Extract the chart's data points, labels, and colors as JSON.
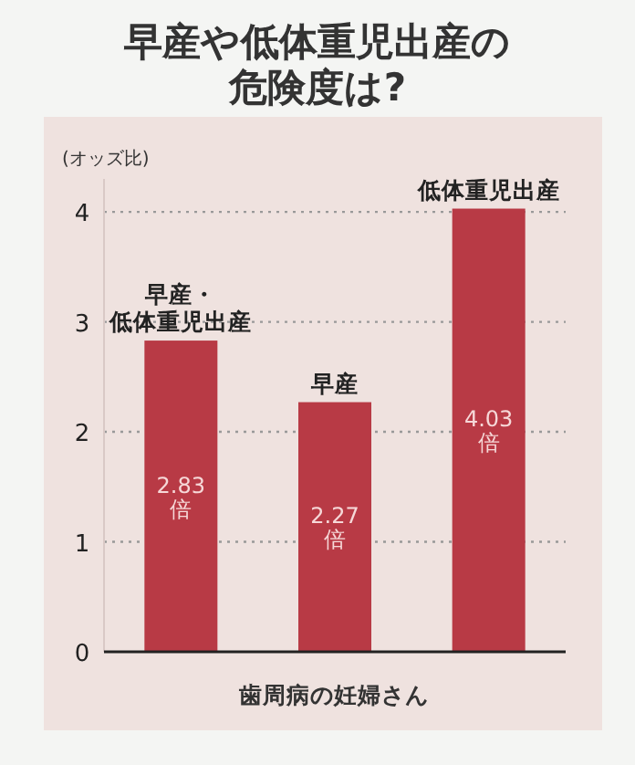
{
  "chart_data": {
    "type": "bar",
    "title": "早産や低体重児出産の危険度は?",
    "ylabel": "(オッズ比)",
    "xlabel": "歯周病の妊婦さん",
    "categories": [
      "早産・低体重児出産",
      "早産",
      "低体重児出産"
    ],
    "values": [
      2.83,
      2.27,
      4.03
    ],
    "value_labels": [
      "2.83倍",
      "2.27倍",
      "4.03倍"
    ],
    "color": "#b83a45",
    "ylim": [
      0,
      4.3
    ],
    "yticks": [
      0,
      1,
      2,
      3,
      4
    ],
    "grid": "y"
  }
}
